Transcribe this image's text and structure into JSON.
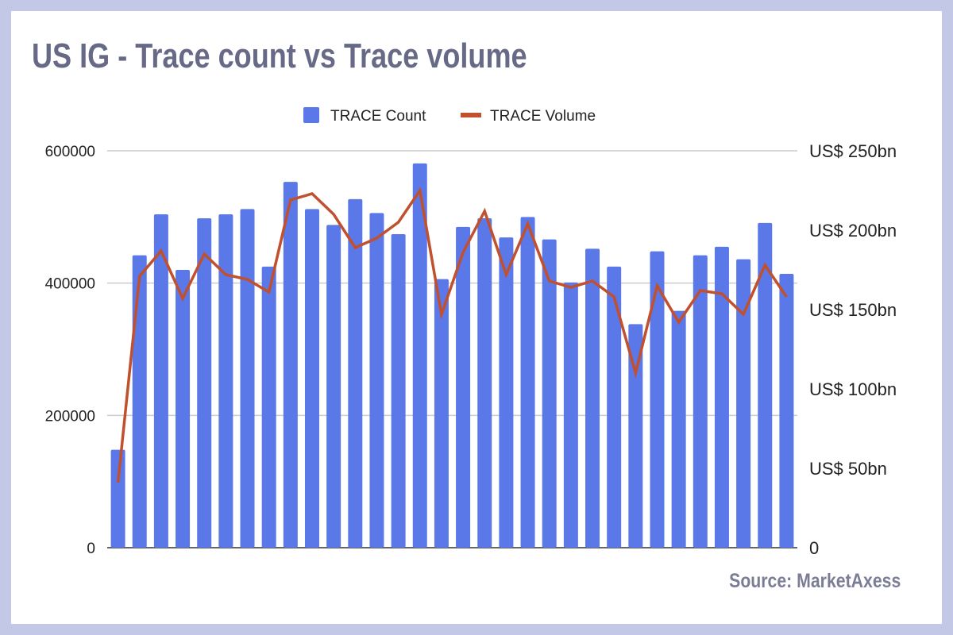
{
  "title": "US IG - Trace count vs Trace volume",
  "source": "Source: MarketAxess",
  "colors": {
    "count": "#5b78e8",
    "volume": "#c0502e",
    "frame": "#c3c8e6",
    "title": "#666a86"
  },
  "chart_data": {
    "type": "bar+line",
    "title": "US IG - Trace count vs Trace volume",
    "legend_position": "top",
    "grid": true,
    "left_axis": {
      "ylim": [
        0,
        600000
      ],
      "ticks": [
        "0",
        "200000",
        "400000",
        "600000"
      ],
      "tick_values": [
        0,
        200000,
        400000,
        600000
      ]
    },
    "right_axis": {
      "ylim": [
        0,
        250
      ],
      "unit": "US$ bn",
      "ticks": [
        "0",
        "US$ 50bn",
        "US$ 100bn",
        "US$ 150bn",
        "US$ 200bn",
        "US$ 250bn"
      ],
      "tick_values": [
        0,
        50,
        100,
        150,
        200,
        250
      ]
    },
    "series": [
      {
        "name": "TRACE Count",
        "type": "bar",
        "axis": "left",
        "values": [
          148000,
          442000,
          504000,
          420000,
          498000,
          504000,
          512000,
          425000,
          553000,
          512000,
          488000,
          527000,
          506000,
          474000,
          581000,
          406000,
          485000,
          498000,
          469000,
          500000,
          466000,
          401000,
          452000,
          425000,
          338000,
          448000,
          358000,
          442000,
          455000,
          436000,
          491000,
          414000
        ]
      },
      {
        "name": "TRACE Volume",
        "type": "line",
        "axis": "right",
        "values": [
          41,
          171,
          187,
          157,
          185,
          172,
          169,
          161,
          219,
          223,
          210,
          189,
          195,
          205,
          225,
          147,
          186,
          212,
          172,
          204,
          168,
          164,
          168,
          158,
          110,
          165,
          142,
          162,
          160,
          147,
          178,
          158
        ]
      }
    ]
  }
}
